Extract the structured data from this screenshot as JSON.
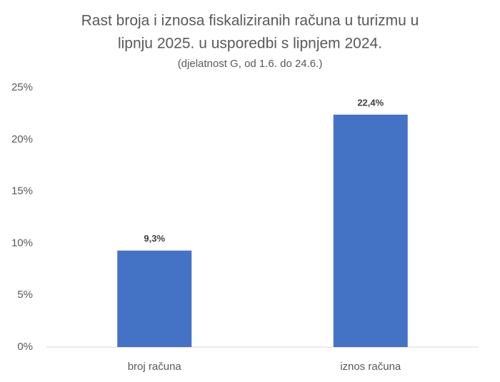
{
  "chart_data": {
    "type": "bar",
    "title": [
      "Rast broja i iznosa fiskaliziranih računa u turizmu u",
      "lipnju 2025. u usporedbi s lipnjem 2024."
    ],
    "subtitle": "(djelatnost G, od 1.6. do 24.6.)",
    "categories": [
      "broj računa",
      "iznos računa"
    ],
    "values": [
      9.3,
      22.4
    ],
    "value_labels": [
      "9,3%",
      "22,4%"
    ],
    "color": "#4472c4",
    "ylim": [
      0,
      25
    ],
    "yticks": [
      {
        "value": 0,
        "label": "0%"
      },
      {
        "value": 5,
        "label": "5%"
      },
      {
        "value": 10,
        "label": "10%"
      },
      {
        "value": 15,
        "label": "15%"
      },
      {
        "value": 20,
        "label": "20%"
      },
      {
        "value": 25,
        "label": "25%"
      }
    ],
    "grid": false
  }
}
